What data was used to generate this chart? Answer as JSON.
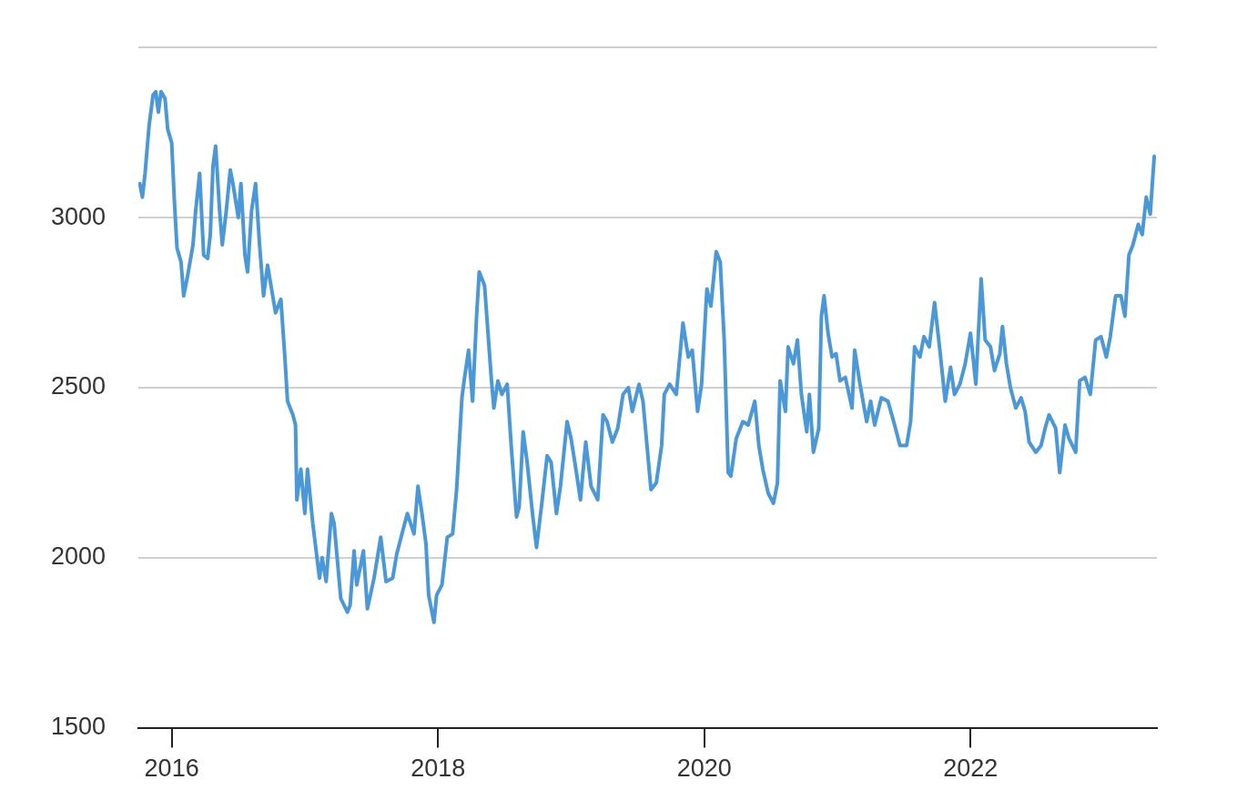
{
  "chart_data": {
    "type": "line",
    "x": [
      2015.76,
      2015.78,
      2015.8,
      2015.83,
      2015.86,
      2015.88,
      2015.9,
      2015.92,
      2015.95,
      2015.97,
      2016.0,
      2016.02,
      2016.04,
      2016.07,
      2016.09,
      2016.12,
      2016.16,
      2016.18,
      2016.21,
      2016.24,
      2016.27,
      2016.29,
      2016.31,
      2016.33,
      2016.36,
      2016.38,
      2016.41,
      2016.44,
      2016.46,
      2016.5,
      2016.52,
      2016.55,
      2016.57,
      2016.6,
      2016.63,
      2016.66,
      2016.69,
      2016.72,
      2016.75,
      2016.78,
      2016.82,
      2016.85,
      2016.87,
      2016.91,
      2016.93,
      2016.94,
      2016.97,
      2017.0,
      2017.02,
      2017.06,
      2017.11,
      2017.13,
      2017.16,
      2017.2,
      2017.22,
      2017.27,
      2017.32,
      2017.34,
      2017.37,
      2017.39,
      2017.44,
      2017.47,
      2017.52,
      2017.57,
      2017.61,
      2017.66,
      2017.69,
      2017.73,
      2017.77,
      2017.82,
      2017.85,
      2017.88,
      2017.91,
      2017.93,
      2017.97,
      2017.99,
      2018.03,
      2018.07,
      2018.11,
      2018.14,
      2018.18,
      2018.2,
      2018.23,
      2018.26,
      2018.29,
      2018.31,
      2018.35,
      2018.4,
      2018.42,
      2018.45,
      2018.48,
      2018.52,
      2018.55,
      2018.59,
      2018.61,
      2018.64,
      2018.67,
      2018.71,
      2018.74,
      2018.78,
      2018.82,
      2018.85,
      2018.89,
      2018.92,
      2018.97,
      2019.0,
      2019.04,
      2019.07,
      2019.11,
      2019.15,
      2019.2,
      2019.24,
      2019.27,
      2019.31,
      2019.35,
      2019.39,
      2019.43,
      2019.46,
      2019.51,
      2019.54,
      2019.57,
      2019.6,
      2019.64,
      2019.68,
      2019.7,
      2019.74,
      2019.79,
      2019.84,
      2019.88,
      2019.91,
      2019.95,
      2019.98,
      2020.02,
      2020.05,
      2020.09,
      2020.12,
      2020.15,
      2020.18,
      2020.2,
      2020.24,
      2020.29,
      2020.33,
      2020.38,
      2020.41,
      2020.44,
      2020.48,
      2020.52,
      2020.55,
      2020.57,
      2020.61,
      2020.63,
      2020.67,
      2020.7,
      2020.73,
      2020.77,
      2020.79,
      2020.82,
      2020.86,
      2020.88,
      2020.9,
      2020.93,
      2020.96,
      2020.99,
      2021.02,
      2021.06,
      2021.11,
      2021.13,
      2021.17,
      2021.22,
      2021.25,
      2021.28,
      2021.33,
      2021.38,
      2021.43,
      2021.47,
      2021.52,
      2021.55,
      2021.58,
      2021.62,
      2021.65,
      2021.69,
      2021.73,
      2021.77,
      2021.81,
      2021.85,
      2021.88,
      2021.92,
      2021.96,
      2022.0,
      2022.04,
      2022.08,
      2022.11,
      2022.15,
      2022.18,
      2022.22,
      2022.24,
      2022.27,
      2022.3,
      2022.34,
      2022.38,
      2022.41,
      2022.44,
      2022.49,
      2022.53,
      2022.56,
      2022.59,
      2022.64,
      2022.67,
      2022.71,
      2022.74,
      2022.79,
      2022.82,
      2022.86,
      2022.9,
      2022.94,
      2022.98,
      2023.02,
      2023.05,
      2023.09,
      2023.13,
      2023.16,
      2023.19,
      2023.22,
      2023.26,
      2023.29,
      2023.32,
      2023.35,
      2023.38
    ],
    "series": [
      {
        "color": "#4a98d8",
        "values": [
          3100,
          3060,
          3130,
          3270,
          3360,
          3370,
          3310,
          3370,
          3350,
          3260,
          3220,
          3050,
          2910,
          2870,
          2770,
          2830,
          2920,
          3020,
          3130,
          2890,
          2880,
          2950,
          3150,
          3210,
          3020,
          2920,
          3020,
          3140,
          3100,
          3000,
          3100,
          2890,
          2840,
          3020,
          3100,
          2920,
          2770,
          2860,
          2790,
          2720,
          2760,
          2590,
          2460,
          2420,
          2390,
          2170,
          2260,
          2130,
          2260,
          2100,
          1940,
          2000,
          1930,
          2130,
          2100,
          1880,
          1840,
          1860,
          2020,
          1920,
          2020,
          1850,
          1940,
          2060,
          1930,
          1940,
          2010,
          2070,
          2130,
          2070,
          2210,
          2130,
          2040,
          1890,
          1810,
          1890,
          1920,
          2060,
          2070,
          2200,
          2470,
          2530,
          2610,
          2460,
          2710,
          2840,
          2800,
          2530,
          2440,
          2520,
          2480,
          2510,
          2330,
          2120,
          2150,
          2370,
          2280,
          2130,
          2030,
          2160,
          2300,
          2280,
          2130,
          2210,
          2400,
          2350,
          2250,
          2170,
          2340,
          2210,
          2170,
          2420,
          2400,
          2340,
          2380,
          2480,
          2500,
          2430,
          2510,
          2460,
          2330,
          2200,
          2220,
          2330,
          2480,
          2510,
          2480,
          2690,
          2590,
          2610,
          2430,
          2510,
          2790,
          2740,
          2900,
          2870,
          2640,
          2250,
          2240,
          2350,
          2400,
          2390,
          2460,
          2330,
          2260,
          2190,
          2160,
          2220,
          2520,
          2430,
          2620,
          2570,
          2640,
          2480,
          2370,
          2480,
          2310,
          2380,
          2710,
          2770,
          2660,
          2590,
          2600,
          2520,
          2530,
          2440,
          2610,
          2510,
          2400,
          2460,
          2390,
          2470,
          2460,
          2390,
          2330,
          2330,
          2400,
          2620,
          2590,
          2650,
          2620,
          2750,
          2610,
          2460,
          2560,
          2480,
          2510,
          2570,
          2660,
          2510,
          2820,
          2640,
          2620,
          2550,
          2600,
          2680,
          2570,
          2500,
          2440,
          2470,
          2430,
          2340,
          2310,
          2330,
          2380,
          2420,
          2380,
          2250,
          2390,
          2350,
          2310,
          2520,
          2530,
          2480,
          2640,
          2650,
          2590,
          2650,
          2770,
          2770,
          2710,
          2890,
          2920,
          2980,
          2950,
          3060,
          3010,
          3180
        ]
      }
    ],
    "xlim": [
      2015.75,
      2023.4
    ],
    "xticks": [
      2016,
      2018,
      2020,
      2022
    ],
    "ylim": [
      1500,
      3500
    ],
    "yticks": [
      1500,
      2000,
      2500,
      3000,
      {
        "value": 3500,
        "label": null
      }
    ],
    "grid": "y",
    "legend": false,
    "marker": "none",
    "line_style": "solid"
  }
}
